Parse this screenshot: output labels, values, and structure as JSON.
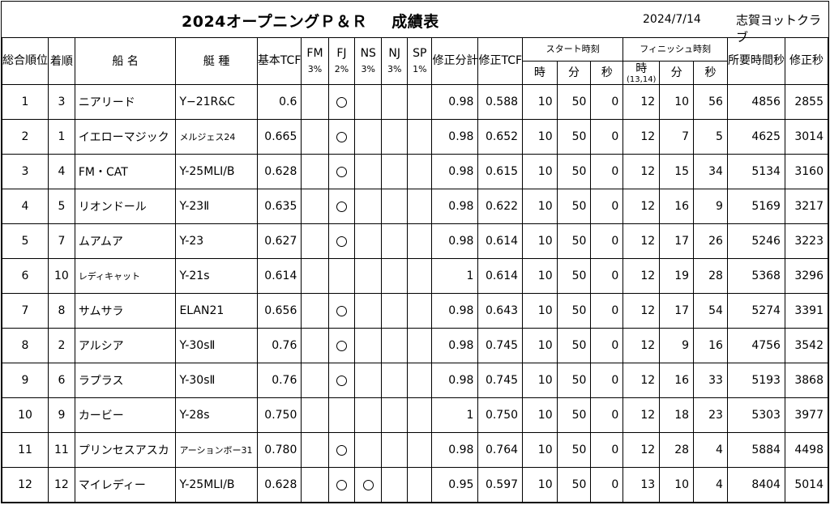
{
  "header": {
    "title_a": "2024オープニングＰ＆Ｒ",
    "title_b": "成績表",
    "date": "2024/7/14",
    "club": "志賀ヨットクラブ"
  },
  "columns": {
    "rank": "総合順位",
    "finish_order": "着順",
    "boat_name": "船 名",
    "boat_type": "艇 種",
    "base_tcf": "基本TCF",
    "fm": "FM",
    "fm_pct": "3%",
    "fj": "FJ",
    "fj_pct": "2%",
    "ns": "NS",
    "ns_pct": "3%",
    "nj": "NJ",
    "nj_pct": "3%",
    "sp": "SP",
    "sp_pct": "1%",
    "adj_factor": "修正分計",
    "adj_tcf": "修正TCF",
    "start_group": "スタート時刻",
    "finish_group": "フィニッシュ時刻",
    "hour": "時",
    "hour_note": "(13,14)",
    "minute": "分",
    "second": "秒",
    "elapsed": "所要時間秒",
    "corrected": "修正秒"
  },
  "rows": [
    {
      "rank": "1",
      "order": "3",
      "name": "ニアリード",
      "type": "Y−21R&C",
      "tcf": "0.6",
      "fm": false,
      "fj": true,
      "ns": false,
      "nj": false,
      "sp": false,
      "factor": "0.98",
      "adj": "0.588",
      "sh": "10",
      "sm": "50",
      "ss": "0",
      "fh": "12",
      "fmin": "10",
      "fs": "56",
      "elapsed": "4856",
      "corr": "2855"
    },
    {
      "rank": "2",
      "order": "1",
      "name": "イエローマジック",
      "type": "メルジェス24",
      "type_small": true,
      "tcf": "0.665",
      "fm": false,
      "fj": true,
      "ns": false,
      "nj": false,
      "sp": false,
      "factor": "0.98",
      "adj": "0.652",
      "sh": "10",
      "sm": "50",
      "ss": "0",
      "fh": "12",
      "fmin": "7",
      "fs": "5",
      "elapsed": "4625",
      "corr": "3014"
    },
    {
      "rank": "3",
      "order": "4",
      "name": "FM・CAT",
      "type": "Y-25MLI/B",
      "tcf": "0.628",
      "fm": false,
      "fj": true,
      "ns": false,
      "nj": false,
      "sp": false,
      "factor": "0.98",
      "adj": "0.615",
      "sh": "10",
      "sm": "50",
      "ss": "0",
      "fh": "12",
      "fmin": "15",
      "fs": "34",
      "elapsed": "5134",
      "corr": "3160"
    },
    {
      "rank": "4",
      "order": "5",
      "name": "リオンドール",
      "type": "Y-23Ⅱ",
      "tcf": "0.635",
      "fm": false,
      "fj": true,
      "ns": false,
      "nj": false,
      "sp": false,
      "factor": "0.98",
      "adj": "0.622",
      "sh": "10",
      "sm": "50",
      "ss": "0",
      "fh": "12",
      "fmin": "16",
      "fs": "9",
      "elapsed": "5169",
      "corr": "3217"
    },
    {
      "rank": "5",
      "order": "7",
      "name": "ムアムア",
      "type": "Y-23",
      "tcf": "0.627",
      "fm": false,
      "fj": true,
      "ns": false,
      "nj": false,
      "sp": false,
      "factor": "0.98",
      "adj": "0.614",
      "sh": "10",
      "sm": "50",
      "ss": "0",
      "fh": "12",
      "fmin": "17",
      "fs": "26",
      "elapsed": "5246",
      "corr": "3223"
    },
    {
      "rank": "6",
      "order": "10",
      "name": "レディキャット",
      "name_small": true,
      "type": "Y-21s",
      "tcf": "0.614",
      "fm": false,
      "fj": false,
      "ns": false,
      "nj": false,
      "sp": false,
      "factor": "1",
      "adj": "0.614",
      "sh": "10",
      "sm": "50",
      "ss": "0",
      "fh": "12",
      "fmin": "19",
      "fs": "28",
      "elapsed": "5368",
      "corr": "3296"
    },
    {
      "rank": "7",
      "order": "8",
      "name": "サムサラ",
      "type": "ELAN21",
      "tcf": "0.656",
      "fm": false,
      "fj": true,
      "ns": false,
      "nj": false,
      "sp": false,
      "factor": "0.98",
      "adj": "0.643",
      "sh": "10",
      "sm": "50",
      "ss": "0",
      "fh": "12",
      "fmin": "17",
      "fs": "54",
      "elapsed": "5274",
      "corr": "3391"
    },
    {
      "rank": "8",
      "order": "2",
      "name": "アルシア",
      "type": "Y-30sⅡ",
      "tcf": "0.76",
      "fm": false,
      "fj": true,
      "ns": false,
      "nj": false,
      "sp": false,
      "factor": "0.98",
      "adj": "0.745",
      "sh": "10",
      "sm": "50",
      "ss": "0",
      "fh": "12",
      "fmin": "9",
      "fs": "16",
      "elapsed": "4756",
      "corr": "3542"
    },
    {
      "rank": "9",
      "order": "6",
      "name": "ラプラス",
      "type": "Y-30sⅡ",
      "tcf": "0.76",
      "fm": false,
      "fj": true,
      "ns": false,
      "nj": false,
      "sp": false,
      "factor": "0.98",
      "adj": "0.745",
      "sh": "10",
      "sm": "50",
      "ss": "0",
      "fh": "12",
      "fmin": "16",
      "fs": "33",
      "elapsed": "5193",
      "corr": "3868"
    },
    {
      "rank": "10",
      "order": "9",
      "name": "カービー",
      "type": "Y-28s",
      "tcf": "0.750",
      "fm": false,
      "fj": false,
      "ns": false,
      "nj": false,
      "sp": false,
      "factor": "1",
      "adj": "0.750",
      "sh": "10",
      "sm": "50",
      "ss": "0",
      "fh": "12",
      "fmin": "18",
      "fs": "23",
      "elapsed": "5303",
      "corr": "3977"
    },
    {
      "rank": "11",
      "order": "11",
      "name": "プリンセスアスカ",
      "type": "アーションボー31",
      "type_small": true,
      "tcf": "0.780",
      "fm": false,
      "fj": true,
      "ns": false,
      "nj": false,
      "sp": false,
      "factor": "0.98",
      "adj": "0.764",
      "sh": "10",
      "sm": "50",
      "ss": "0",
      "fh": "12",
      "fmin": "28",
      "fs": "4",
      "elapsed": "5884",
      "corr": "4498"
    },
    {
      "rank": "12",
      "order": "12",
      "name": "マイレディー",
      "type": "Y-25MLI/B",
      "tcf": "0.628",
      "fm": false,
      "fj": true,
      "ns": true,
      "nj": false,
      "sp": false,
      "factor": "0.95",
      "adj": "0.597",
      "sh": "10",
      "sm": "50",
      "ss": "0",
      "fh": "13",
      "fmin": "10",
      "fs": "4",
      "elapsed": "8404",
      "corr": "5014"
    }
  ]
}
